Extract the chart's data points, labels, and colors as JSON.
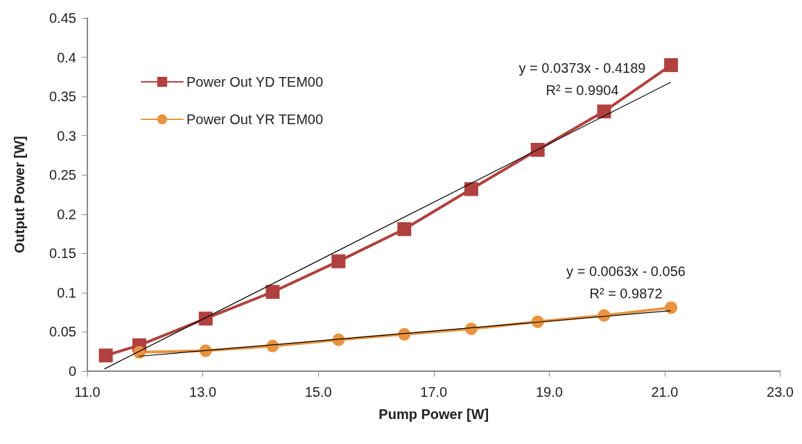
{
  "chart_data": {
    "type": "line",
    "xlabel": "Pump Power [W]",
    "ylabel": "Output Power [W]",
    "xlim": [
      11,
      23
    ],
    "xticks": [
      {
        "value": 11,
        "label": "11.0"
      },
      {
        "value": 13,
        "label": "13.0"
      },
      {
        "value": 15,
        "label": "15.0"
      },
      {
        "value": 17,
        "label": "17.0"
      },
      {
        "value": 19,
        "label": "19.0"
      },
      {
        "value": 21,
        "label": "21.0"
      },
      {
        "value": 23,
        "label": "23.0"
      }
    ],
    "ylim": [
      0,
      0.45
    ],
    "yticks": [
      0,
      0.05,
      0.1,
      0.15,
      0.2,
      0.25,
      0.3,
      0.35,
      0.4,
      0.45
    ],
    "grid": false,
    "legend": "top left",
    "series": [
      {
        "name": "Power Out YD TEM00",
        "color": "#b0413e",
        "marker": "square",
        "x": [
          11.32,
          11.9,
          13.05,
          14.21,
          15.35,
          16.49,
          17.65,
          18.8,
          19.95,
          21.11
        ],
        "values": [
          0.02,
          0.033,
          0.067,
          0.101,
          0.14,
          0.181,
          0.232,
          0.282,
          0.331,
          0.39
        ]
      },
      {
        "name": "Power Out YR TEM00",
        "color": "#e9933f",
        "marker": "circle",
        "x": [
          11.9,
          13.05,
          14.21,
          15.35,
          16.49,
          17.65,
          18.8,
          19.95,
          21.11
        ],
        "values": [
          0.024,
          0.026,
          0.032,
          0.04,
          0.047,
          0.054,
          0.063,
          0.071,
          0.081
        ]
      },
      {
        "type": "line",
        "color": "#000000",
        "marker": "none",
        "x": [
          11.3,
          21.1
        ],
        "values": [
          0.003,
          0.368
        ]
      },
      {
        "type": "line",
        "color": "#000000",
        "marker": "none",
        "x": [
          11.9,
          21.1
        ],
        "values": [
          0.019,
          0.077
        ]
      }
    ],
    "annotations": [
      "y = 0.0373x - 0.4189",
      "R² = 0.9904",
      "y = 0.0063x - 0.056",
      "R² = 0.9872"
    ]
  }
}
